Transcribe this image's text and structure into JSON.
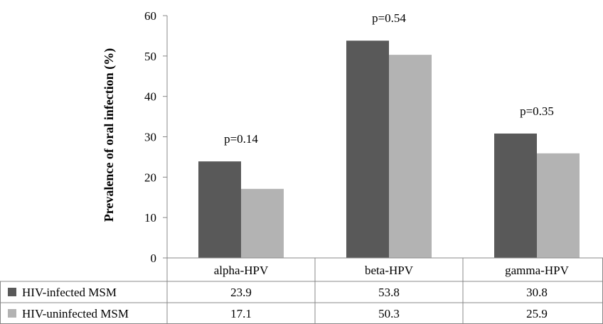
{
  "chart_data": {
    "type": "bar",
    "ylabel": "Prevalence of oral infection (%)",
    "ylim": [
      0,
      60
    ],
    "yticks": [
      0,
      10,
      20,
      30,
      40,
      50,
      60
    ],
    "categories": [
      "alpha-HPV",
      "beta-HPV",
      "gamma-HPV"
    ],
    "series": [
      {
        "name": "HIV-infected MSM",
        "values": [
          23.9,
          53.8,
          30.8
        ],
        "color": "#595959"
      },
      {
        "name": "HIV-uninfected MSM",
        "values": [
          17.1,
          50.3,
          25.9
        ],
        "color": "#b3b3b3"
      }
    ],
    "annotations": [
      "p=0.14",
      "p=0.54",
      "p=0.35"
    ],
    "grid": false,
    "legend": "data-table"
  }
}
